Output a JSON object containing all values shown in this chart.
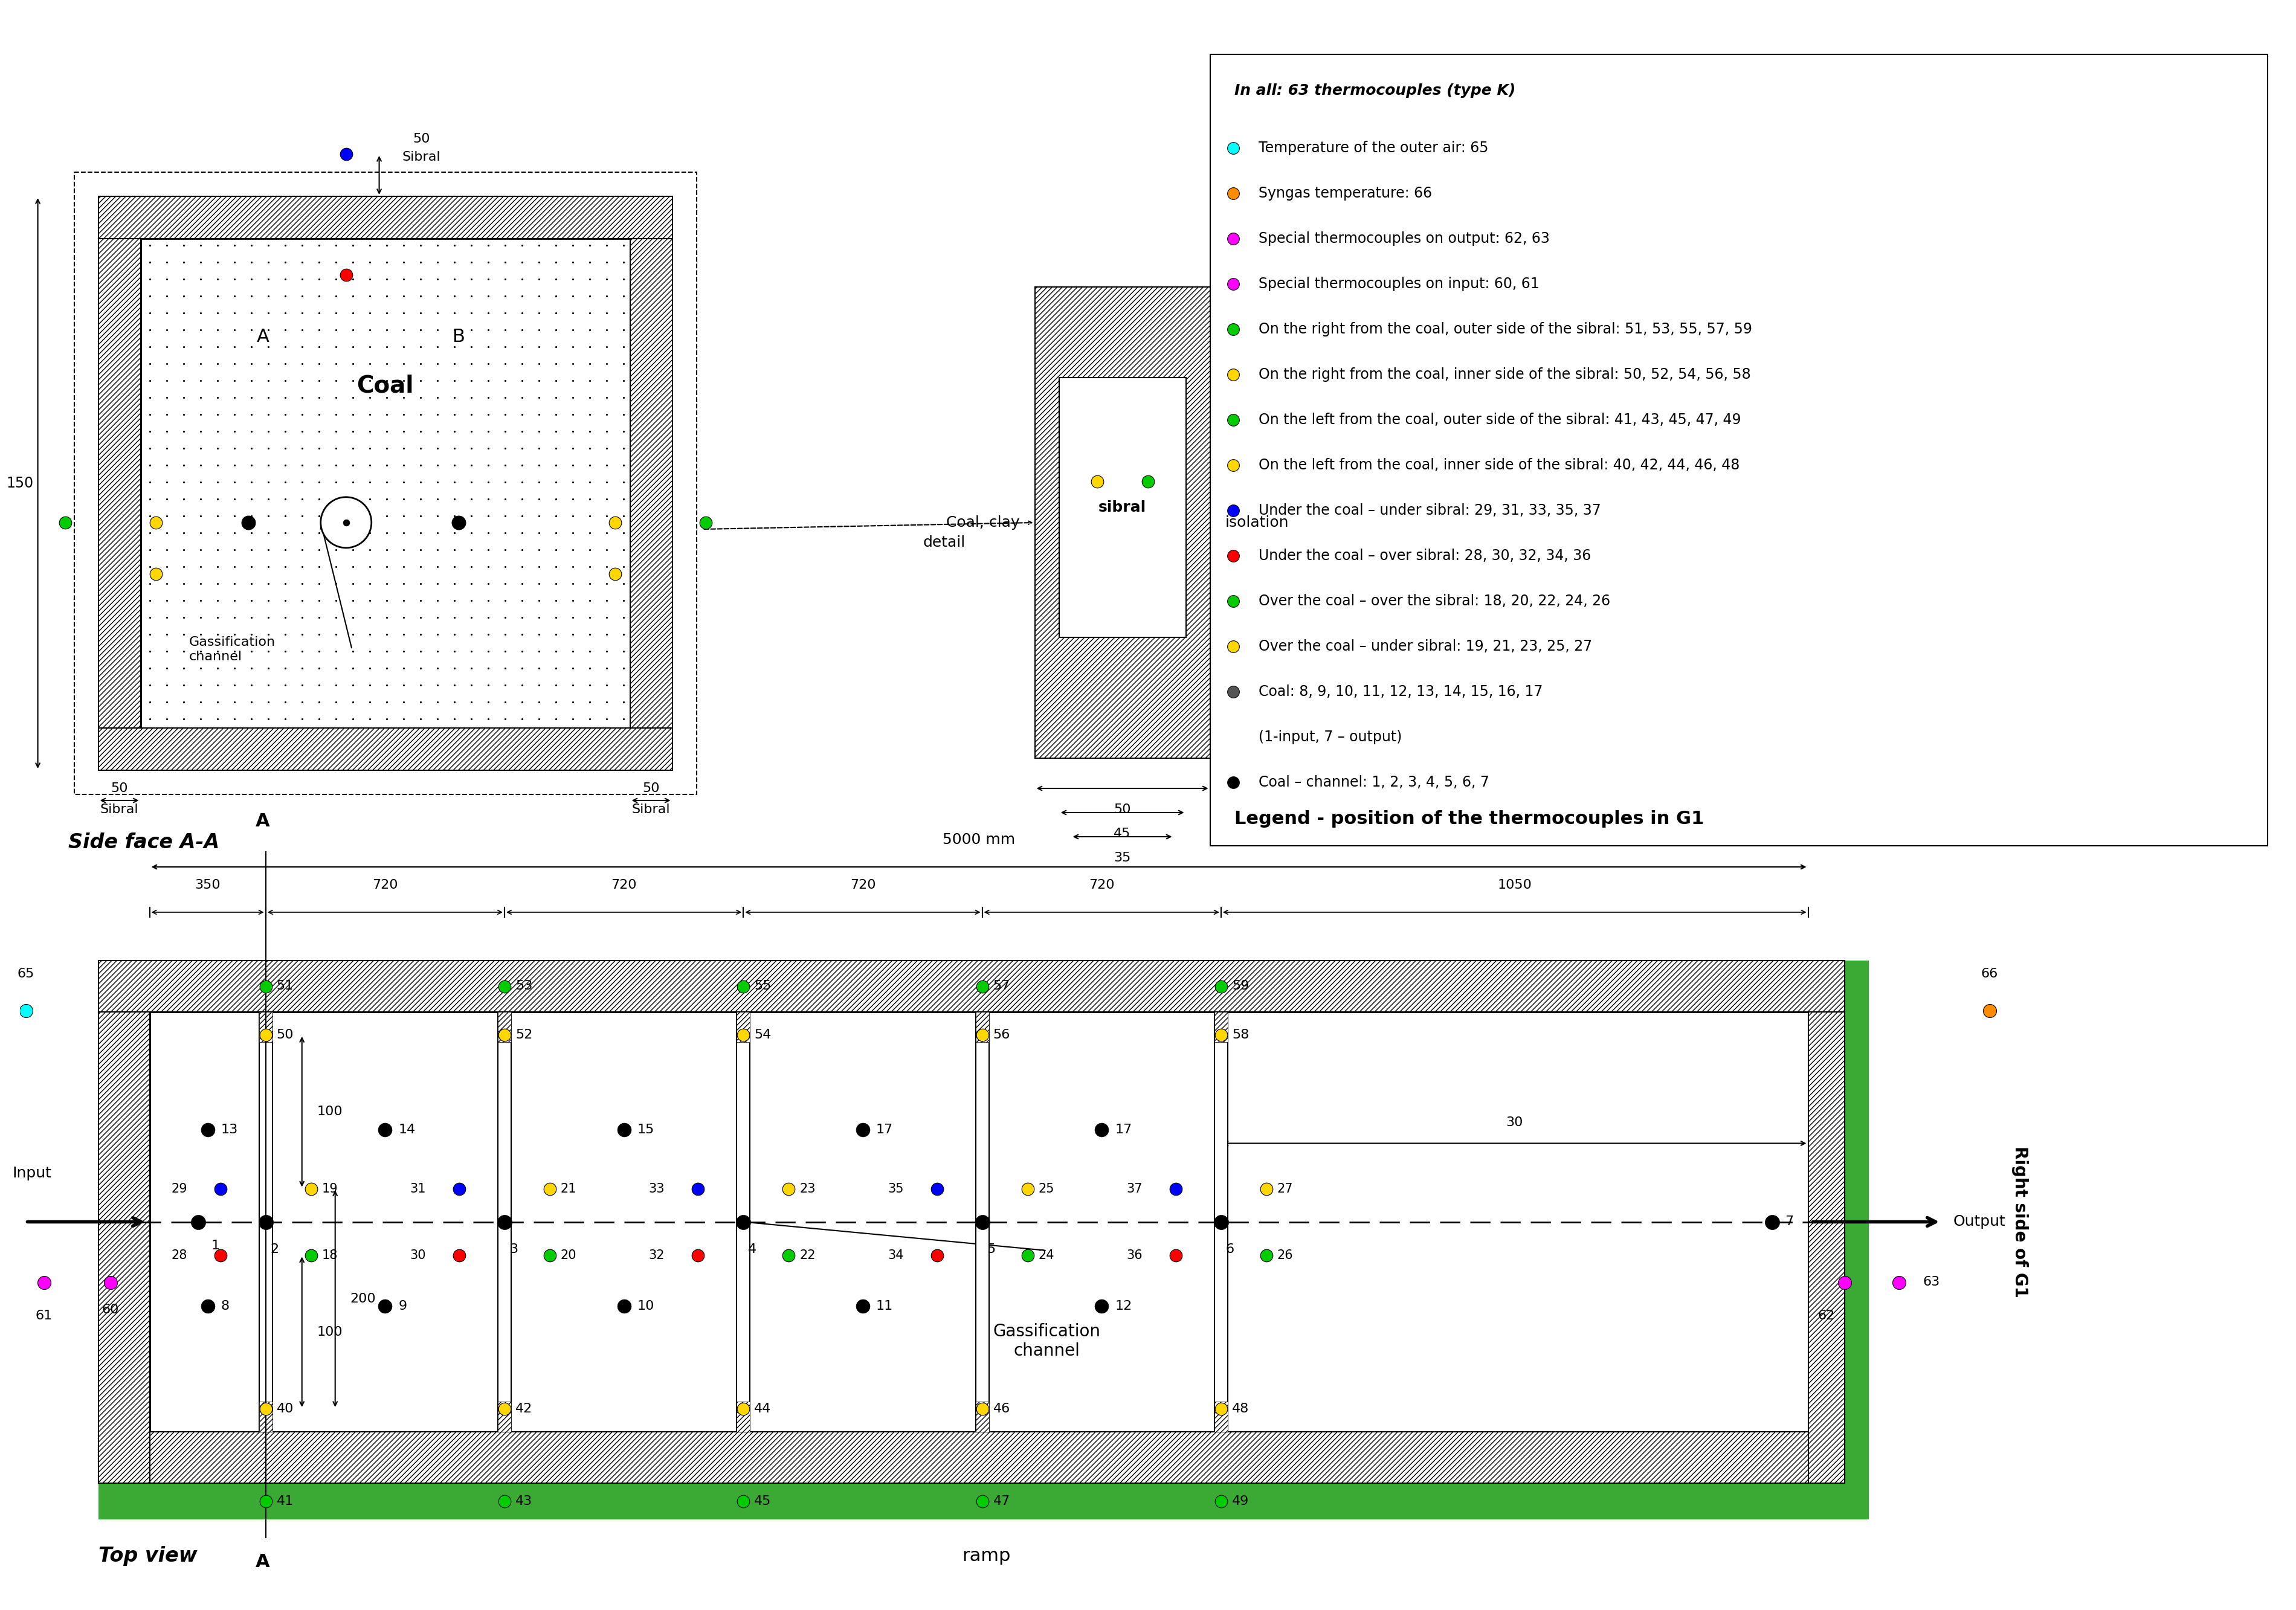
{
  "bg_color": "#ffffff",
  "top_view_label": "Top view",
  "side_face_label": "Side face A-A",
  "ramp_label": "ramp",
  "input_label": "Input",
  "output_label": "Output",
  "right_side_label": "Right side of G1",
  "gasification_channel_label": "Gassification\nchannel",
  "coal_label": "Coal",
  "coal_clay_label": "Coal, clay",
  "sibral_label": "sibral",
  "isolation_label": "isolation",
  "detail_label": "detail",
  "legend_title": "Legend - position of the thermocouples in G1",
  "legend_footer": "In all: 63 thermocouples (type K)",
  "green_color": "#3aaa35",
  "dark_green_dot": "#006400",
  "bright_green_dot": "#00cc00",
  "yellow_dot": "#FFD700",
  "red_dot": "#FF0000",
  "blue_dot": "#0000FF",
  "magenta_dot": "#FF00FF",
  "cyan_dot": "#00FFFF",
  "orange_dot": "#FF8C00",
  "black_dot": "#000000",
  "gray_dot": "#555555",
  "dim_350": "350",
  "dim_720": "720",
  "dim_1050": "1050",
  "dim_5000": "5000 mm",
  "dim_150": "150",
  "dim_100": "100",
  "dim_200": "200",
  "dim_30": "30",
  "dim_50": "50",
  "dim_45": "45",
  "dim_35": "35",
  "sibral_top_label": "Sibral\n50",
  "sibral_bot_label": "Sibral\n50"
}
